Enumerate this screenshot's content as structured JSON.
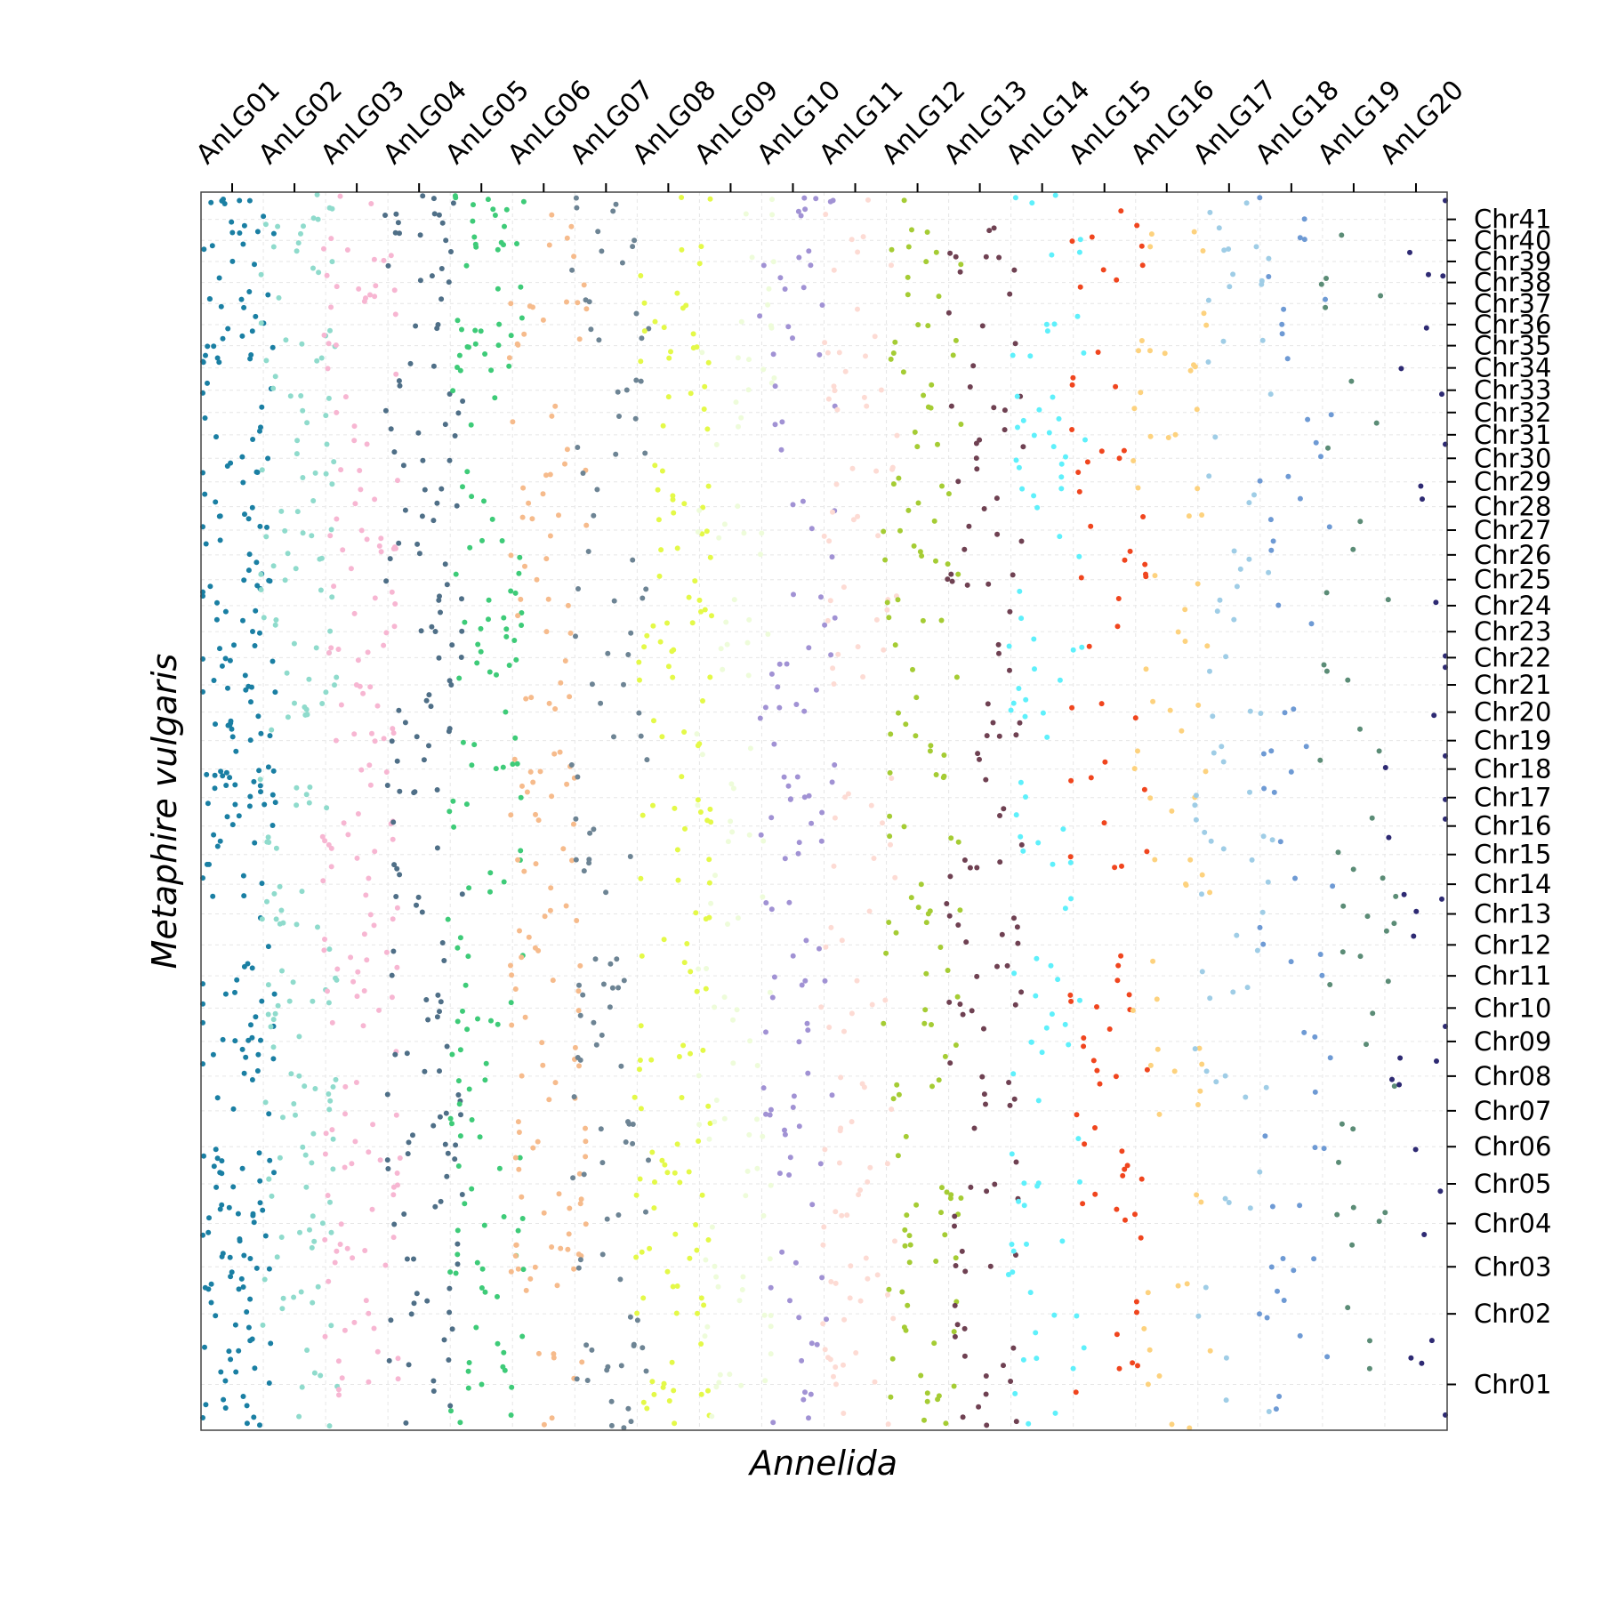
{
  "chart_data": {
    "type": "scatter",
    "xlabel": "Annelida",
    "ylabel": "Metaphire vulgaris",
    "x_categories": [
      "AnLG01",
      "AnLG02",
      "AnLG03",
      "AnLG04",
      "AnLG05",
      "AnLG06",
      "AnLG07",
      "AnLG08",
      "AnLG09",
      "AnLG10",
      "AnLG11",
      "AnLG12",
      "AnLG13",
      "AnLG14",
      "AnLG15",
      "AnLG16",
      "AnLG17",
      "AnLG18",
      "AnLG19",
      "AnLG20"
    ],
    "y_categories": [
      "Chr01",
      "Chr02",
      "Chr03",
      "Chr04",
      "Chr05",
      "Chr06",
      "Chr07",
      "Chr08",
      "Chr09",
      "Chr10",
      "Chr11",
      "Chr12",
      "Chr13",
      "Chr14",
      "Chr15",
      "Chr16",
      "Chr17",
      "Chr18",
      "Chr19",
      "Chr20",
      "Chr21",
      "Chr22",
      "Chr23",
      "Chr24",
      "Chr25",
      "Chr26",
      "Chr27",
      "Chr28",
      "Chr29",
      "Chr30",
      "Chr31",
      "Chr32",
      "Chr33",
      "Chr34",
      "Chr35",
      "Chr36",
      "Chr37",
      "Chr38",
      "Chr39",
      "Chr40",
      "Chr41"
    ],
    "y_tick_positions": [
      0.037,
      0.094,
      0.132,
      0.167,
      0.199,
      0.229,
      0.258,
      0.286,
      0.314,
      0.341,
      0.367,
      0.392,
      0.417,
      0.441,
      0.465,
      0.488,
      0.511,
      0.534,
      0.557,
      0.58,
      0.602,
      0.624,
      0.645,
      0.666,
      0.687,
      0.707,
      0.727,
      0.746,
      0.766,
      0.785,
      0.804,
      0.822,
      0.84,
      0.858,
      0.876,
      0.893,
      0.91,
      0.927,
      0.944,
      0.961,
      0.978
    ],
    "series_colors": [
      "#1a7fa3",
      "#8fdbcc",
      "#f7b6d2",
      "#4f6f87",
      "#3ecb78",
      "#f6bb8c",
      "#6d8494",
      "#e4f948",
      "#eefcda",
      "#a192d4",
      "#fddbd4",
      "#a5cc34",
      "#6f4152",
      "#5ef0fb",
      "#f0451e",
      "#fdd27e",
      "#9fcde6",
      "#6e9ad4",
      "#5b8c76",
      "#2e2a73"
    ],
    "point_density_per_lg": [
      260,
      170,
      160,
      150,
      150,
      140,
      110,
      150,
      100,
      110,
      110,
      130,
      110,
      100,
      80,
      70,
      70,
      60,
      45,
      35
    ],
    "grid": true,
    "legend": "none"
  }
}
